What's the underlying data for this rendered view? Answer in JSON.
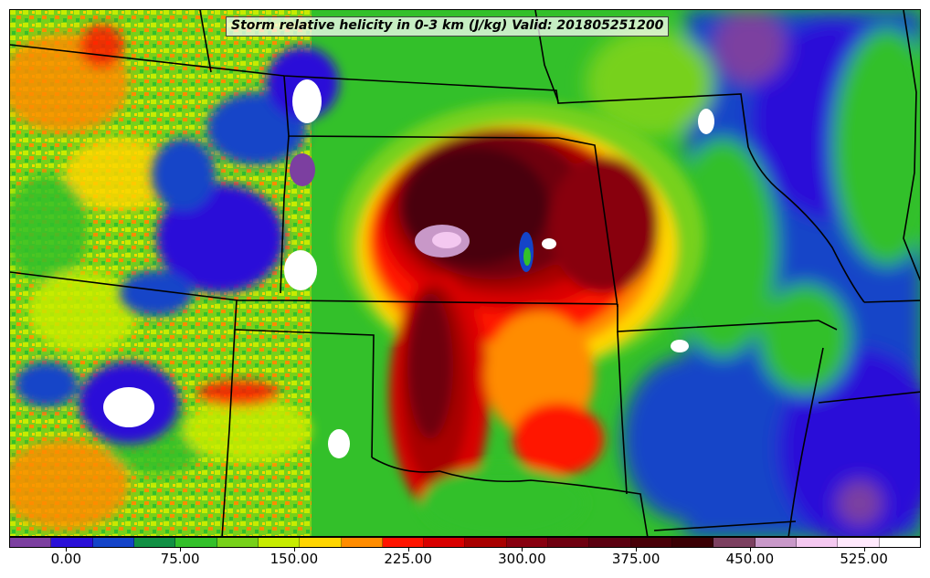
{
  "map": {
    "title": "Storm relative helicity in 0-3 km (J/kg) Valid: 201805251200",
    "variable": "Storm relative helicity in 0-3 km",
    "units": "J/kg",
    "valid_time": "201805251200",
    "region": "Central United States (Plains)"
  },
  "colorbar": {
    "colors": [
      "#7c3fa0",
      "#2a10d8",
      "#1444c8",
      "#119044",
      "#33c02a",
      "#77d11a",
      "#c7ec00",
      "#ffd500",
      "#ff8c00",
      "#ff1400",
      "#d80000",
      "#a80000",
      "#880010",
      "#6e0010",
      "#5a0010",
      "#480008",
      "#3a0004",
      "#7c4060",
      "#c898c8",
      "#f4c8f0",
      "#ffe8fc",
      "#ffffff"
    ],
    "tick_labels": [
      "0.00",
      "75.00",
      "150.00",
      "225.00",
      "300.00",
      "375.00",
      "450.00",
      "525.00"
    ],
    "tick_values": [
      0,
      75,
      150,
      225,
      300,
      375,
      450,
      525
    ],
    "range": [
      -37.5,
      562.5
    ]
  }
}
